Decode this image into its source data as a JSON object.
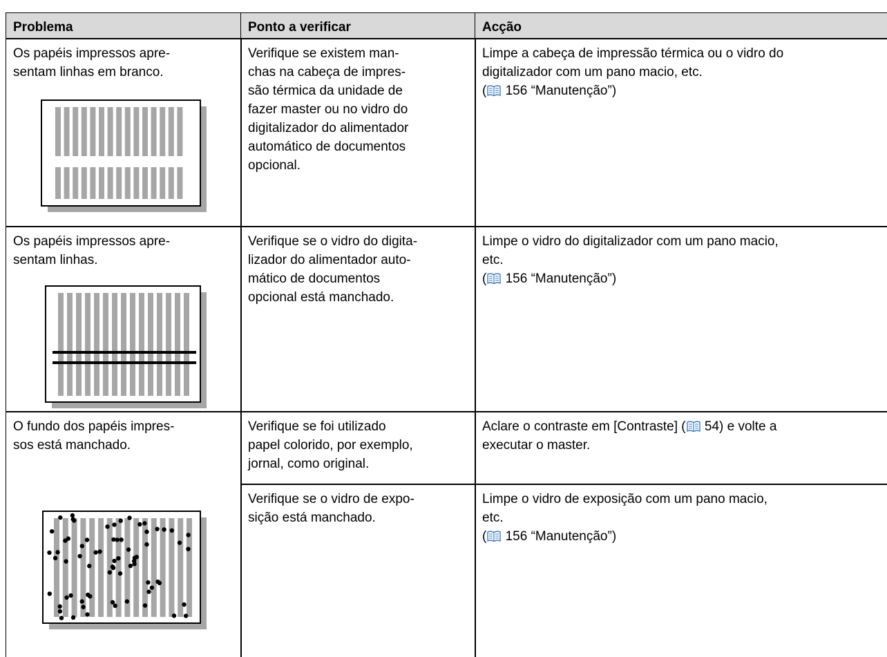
{
  "table": {
    "header": [
      "Problema",
      "Ponto a verificar",
      "Acção"
    ],
    "rows": [
      {
        "problem": [
          "Os papéis impressos apre-",
          "sentam linhas em branco."
        ],
        "items": [
          {
            "check": [
              "Verifique se existem man-",
              "chas na cabeça de impres-",
              "são térmica da unidade de",
              "fazer master ou no vidro do",
              "digitalizador do alimentador",
              "automático de documentos",
              "opcional."
            ],
            "action": [
              "Limpe a cabeça de impressão térmica ou o vidro do",
              "digitalizador com um pano macio, etc.",
              {
                "pre": "(",
                "post": " 156 “Manutenção”)"
              }
            ]
          }
        ]
      },
      {
        "problem": [
          "Os papéis impressos apre-",
          "sentam linhas."
        ],
        "items": [
          {
            "check": [
              "Verifique se o vidro do digita-",
              "lizador do alimentador auto-",
              "mático de documentos",
              "opcional está manchado."
            ],
            "action": [
              "Limpe o vidro do digitalizador com um pano macio,",
              "etc.",
              {
                "pre": "(",
                "post": " 156 “Manutenção”)"
              }
            ]
          }
        ]
      },
      {
        "problem": [
          "O fundo dos papéis impres-",
          "sos está manchado."
        ],
        "items": [
          {
            "check": [
              "Verifique se foi utilizado",
              "papel colorido, por exemplo,",
              "jornal, como original."
            ],
            "action": [
              {
                "pre": "Aclare o contraste em [Contraste] (",
                "post": " 54) e volte a"
              },
              "executar o master."
            ]
          },
          {
            "check": [
              "Verifique se o vidro de expo-",
              "sição está manchado."
            ],
            "action": [
              "Limpe o vidro de exposição com um pano macio,",
              "etc.",
              {
                "pre": "(",
                "post": " 156 “Manutenção”)"
              }
            ]
          }
        ]
      }
    ]
  }
}
